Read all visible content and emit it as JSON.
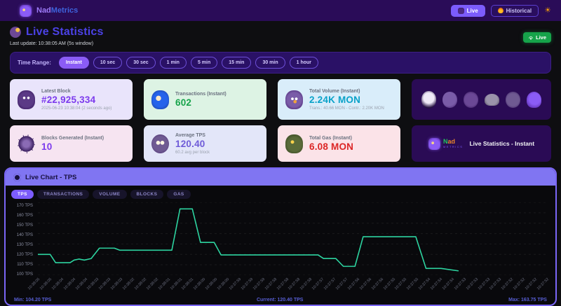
{
  "topbar": {
    "brand_first": "Nad",
    "brand_second": "Metrics",
    "live_label": "Live",
    "historical_label": "Historical",
    "sun_icon": "☀"
  },
  "header": {
    "title": "Live Statistics",
    "last_update": "Last update: 10:38:05 AM  (5s window)",
    "live_badge": "Live"
  },
  "time_range": {
    "label": "Time Range:",
    "options": [
      "Instant",
      "10 sec",
      "30 sec",
      "1 min",
      "5 min",
      "15 min",
      "30 min",
      "1 hour"
    ],
    "active": "Instant"
  },
  "stats": {
    "latest_block": {
      "title": "Latest Block",
      "value": "#22,925,334",
      "subtitle": "2025-06-23 10:38:04 (2 seconds ago)"
    },
    "transactions": {
      "title": "Transactions (Instant)",
      "value": "602"
    },
    "total_volume": {
      "title": "Total Volume (Instant)",
      "value": "2.24K MON",
      "subtitle": "Trans.: 40.66 MON - Contr.: 2.20K MON"
    },
    "blocks_generated": {
      "title": "Blocks Generated (Instant)",
      "value": "10"
    },
    "average_tps": {
      "title": "Average TPS",
      "value": "120.40",
      "subtitle": "60.2 avg per block"
    },
    "total_gas": {
      "title": "Total Gas (Instant)",
      "value": "6.08 MON"
    },
    "logo_card": {
      "brand_n": "N",
      "brand_ad": "ad",
      "brand_sub": "METRICS",
      "text": "Live Statistics - Instant"
    }
  },
  "chart": {
    "title": "Live Chart - TPS",
    "tabs": [
      "TPS",
      "TRANSACTIONS",
      "VOLUME",
      "BLOCKS",
      "GAS"
    ],
    "active_tab": "TPS",
    "footer": {
      "min": "Min: 104.20 TPS",
      "current": "Current: 120.40 TPS",
      "max": "Max: 163.75 TPS"
    }
  },
  "chart_data": {
    "type": "line",
    "title": "Live Chart - TPS",
    "ylabel": "TPS",
    "ylim": [
      100,
      170
    ],
    "grid": "horizontal-dashed",
    "legend": "none",
    "yticks": [
      "170 TPS",
      "160 TPS",
      "150 TPS",
      "140 TPS",
      "130 TPS",
      "120 TPS",
      "110 TPS",
      "100 TPS"
    ],
    "x_labels": [
      "10:38:05",
      "10:38:05",
      "10:38:04",
      "10:38:04",
      "10:38:04",
      "10:38:03",
      "10:38:03",
      "10:38:03",
      "10:38:02",
      "10:38:02",
      "10:38:02",
      "10:38:01",
      "10:38:01",
      "10:38:01",
      "10:38:00",
      "10:38:00",
      "10:38:00",
      "10:37:59",
      "10:37:59",
      "10:37:59",
      "10:37:58",
      "10:37:58",
      "10:37:58",
      "10:37:58",
      "10:37:57",
      "10:37:57",
      "10:37:57",
      "10:37:56",
      "10:37:56",
      "10:37:56",
      "10:37:55",
      "10:37:55",
      "10:37:55",
      "10:37:54",
      "10:37:54",
      "10:37:54",
      "10:37:53",
      "10:37:53",
      "10:37:53",
      "10:37:53",
      "10:37:52",
      "10:37:52",
      "10:37:52",
      "10:37:52"
    ],
    "series": [
      {
        "name": "TPS",
        "color": "#2dd4a0",
        "points_x_tps": [
          [
            0,
            120
          ],
          [
            18,
            120
          ],
          [
            26,
            112
          ],
          [
            47,
            112
          ],
          [
            53,
            114.5
          ],
          [
            60,
            115.5
          ],
          [
            68,
            114.5
          ],
          [
            78,
            116
          ],
          [
            90,
            126
          ],
          [
            112,
            126
          ],
          [
            120,
            124
          ],
          [
            196,
            124
          ],
          [
            208,
            163.75
          ],
          [
            226,
            163.75
          ],
          [
            238,
            131.5
          ],
          [
            258,
            131.5
          ],
          [
            268,
            119.5
          ],
          [
            410,
            119.5
          ],
          [
            418,
            116
          ],
          [
            436,
            116
          ],
          [
            447,
            108.5
          ],
          [
            464,
            108.5
          ],
          [
            476,
            137
          ],
          [
            553,
            137
          ],
          [
            568,
            106.5
          ],
          [
            590,
            106.5
          ],
          [
            615,
            104.2
          ]
        ]
      }
    ],
    "plot_width_units": 745,
    "min_tps": 104.2,
    "current_tps": 120.4,
    "max_tps": 163.75
  },
  "colors": {
    "accent_purple": "#7c5cfc",
    "topbar_bg": "#2a0c58",
    "page_bg": "#0e0e11",
    "line_color": "#2dd4a0",
    "live_badge_green": "#16a34a",
    "chart_header_bg": "#8075f2",
    "footer_text": "#585fd6"
  }
}
